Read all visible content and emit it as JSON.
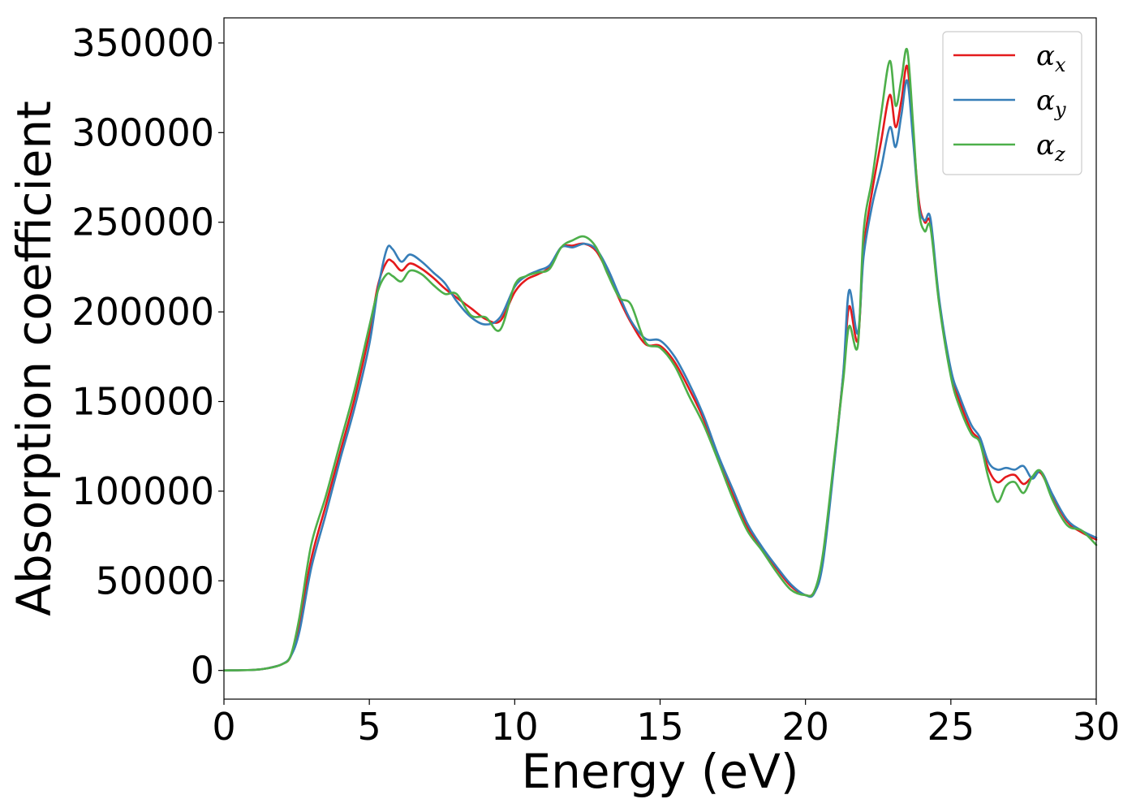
{
  "chart_data": {
    "type": "line",
    "xlabel": "Energy (eV)",
    "ylabel": "Absorption coefficient",
    "xlim": [
      0,
      30
    ],
    "ylim": [
      -16000,
      364000
    ],
    "xticks": [
      0,
      5,
      10,
      15,
      20,
      25,
      30
    ],
    "xtick_labels": [
      "0",
      "5",
      "10",
      "15",
      "20",
      "25",
      "30"
    ],
    "yticks": [
      0,
      50000,
      100000,
      150000,
      200000,
      250000,
      300000,
      350000
    ],
    "ytick_labels": [
      "0",
      "50000",
      "100000",
      "150000",
      "200000",
      "250000",
      "300000",
      "350000"
    ],
    "grid": false,
    "legend_position": "top-right",
    "series": [
      {
        "name": "α_x",
        "legend_symbol": "α",
        "legend_subscript": "x",
        "color": "#e41a1c",
        "x": [
          0,
          1,
          1.5,
          2,
          2.3,
          2.6,
          3,
          3.5,
          4,
          4.5,
          5,
          5.3,
          5.6,
          5.8,
          6.1,
          6.4,
          6.8,
          7.2,
          7.6,
          8,
          8.5,
          9,
          9.5,
          10,
          10.4,
          10.8,
          11.2,
          11.6,
          12,
          12.4,
          12.8,
          13.2,
          13.6,
          14,
          14.5,
          15,
          15.5,
          16,
          16.5,
          17,
          17.5,
          18,
          18.5,
          19,
          19.5,
          20,
          20.3,
          20.6,
          21,
          21.3,
          21.5,
          21.8,
          22,
          22.3,
          22.6,
          22.9,
          23.1,
          23.3,
          23.5,
          23.7,
          23.9,
          24.1,
          24.3,
          24.6,
          25,
          25.3,
          25.7,
          26,
          26.3,
          26.6,
          26.9,
          27.2,
          27.5,
          27.8,
          28.1,
          28.5,
          29,
          29.5,
          30
        ],
        "y": [
          0,
          300,
          1200,
          3500,
          8000,
          26000,
          62000,
          92000,
          122000,
          152000,
          188000,
          215000,
          228000,
          228000,
          223000,
          227000,
          224000,
          219000,
          213000,
          208000,
          202000,
          196000,
          195000,
          211000,
          218000,
          221000,
          225000,
          236000,
          237000,
          238000,
          234000,
          222000,
          207000,
          194000,
          182000,
          181000,
          172000,
          157000,
          140000,
          118000,
          98000,
          80000,
          68000,
          57000,
          47000,
          42000,
          44000,
          62000,
          118000,
          165000,
          203000,
          184000,
          235000,
          268000,
          295000,
          321000,
          303000,
          318000,
          337000,
          300000,
          262000,
          250000,
          249000,
          205000,
          166000,
          150000,
          134000,
          128000,
          112000,
          105000,
          108000,
          109000,
          104000,
          108000,
          110000,
          97000,
          83000,
          77000,
          73000
        ]
      },
      {
        "name": "α_y",
        "legend_symbol": "α",
        "legend_subscript": "y",
        "color": "#377eb8",
        "x": [
          0,
          1,
          1.5,
          2,
          2.3,
          2.6,
          3,
          3.5,
          4,
          4.5,
          5,
          5.3,
          5.6,
          5.8,
          6.1,
          6.4,
          6.8,
          7.2,
          7.6,
          8,
          8.5,
          9,
          9.5,
          10,
          10.4,
          10.8,
          11.2,
          11.6,
          12,
          12.4,
          12.8,
          13.2,
          13.6,
          14,
          14.5,
          15,
          15.5,
          16,
          16.5,
          17,
          17.5,
          18,
          18.5,
          19,
          19.5,
          20,
          20.3,
          20.6,
          21,
          21.3,
          21.5,
          21.8,
          22,
          22.3,
          22.6,
          22.9,
          23.1,
          23.3,
          23.5,
          23.7,
          23.9,
          24.1,
          24.3,
          24.6,
          25,
          25.3,
          25.7,
          26,
          26.3,
          26.6,
          26.9,
          27.2,
          27.5,
          27.8,
          28.1,
          28.5,
          29,
          29.5,
          30
        ],
        "y": [
          0,
          300,
          1200,
          3500,
          8000,
          22000,
          57000,
          87000,
          118000,
          147000,
          182000,
          213000,
          235000,
          235000,
          228000,
          232000,
          228000,
          222000,
          216000,
          206000,
          197000,
          193000,
          197000,
          214000,
          220000,
          223000,
          226000,
          236000,
          236000,
          238000,
          235000,
          224000,
          209000,
          195000,
          185000,
          184000,
          175000,
          160000,
          142000,
          120000,
          101000,
          82000,
          69000,
          58000,
          48000,
          42000,
          43000,
          60000,
          117000,
          166000,
          212000,
          188000,
          231000,
          260000,
          280000,
          303000,
          292000,
          310000,
          329000,
          296000,
          259000,
          251000,
          252000,
          207000,
          168000,
          153000,
          137000,
          130000,
          116000,
          112000,
          113000,
          112000,
          114000,
          107000,
          111000,
          98000,
          84000,
          78000,
          74000
        ]
      },
      {
        "name": "α_z",
        "legend_symbol": "α",
        "legend_subscript": "z",
        "color": "#4daf4a",
        "x": [
          0,
          1,
          1.5,
          2,
          2.3,
          2.6,
          3,
          3.5,
          4,
          4.5,
          5,
          5.3,
          5.6,
          5.8,
          6.1,
          6.4,
          6.8,
          7.2,
          7.6,
          8,
          8.5,
          9,
          9.5,
          10,
          10.4,
          10.8,
          11.2,
          11.6,
          12,
          12.4,
          12.8,
          13.2,
          13.6,
          14,
          14.5,
          15,
          15.5,
          16,
          16.5,
          17,
          17.5,
          18,
          18.5,
          19,
          19.5,
          20,
          20.3,
          20.6,
          21,
          21.3,
          21.5,
          21.8,
          22,
          22.3,
          22.6,
          22.9,
          23.1,
          23.3,
          23.5,
          23.7,
          23.9,
          24.1,
          24.3,
          24.6,
          25,
          25.3,
          25.7,
          26,
          26.3,
          26.6,
          26.9,
          27.2,
          27.5,
          27.8,
          28.1,
          28.5,
          29,
          29.5,
          30
        ],
        "y": [
          0,
          300,
          1200,
          3500,
          8500,
          30000,
          70000,
          97000,
          127000,
          157000,
          192000,
          212000,
          221000,
          220000,
          217000,
          223000,
          221000,
          215000,
          210000,
          210000,
          198000,
          197000,
          190000,
          215000,
          220000,
          222000,
          224000,
          236000,
          240000,
          242000,
          236000,
          221000,
          208000,
          204000,
          183000,
          180000,
          170000,
          153000,
          137000,
          117000,
          96000,
          78000,
          67000,
          55000,
          45000,
          42000,
          44000,
          65000,
          120000,
          162000,
          192000,
          181000,
          245000,
          275000,
          310000,
          340000,
          315000,
          330000,
          346000,
          305000,
          257000,
          245000,
          247000,
          204000,
          164000,
          147000,
          132000,
          127000,
          107000,
          94000,
          103000,
          105000,
          99000,
          108000,
          111000,
          95000,
          81000,
          78000,
          70000
        ]
      }
    ]
  }
}
